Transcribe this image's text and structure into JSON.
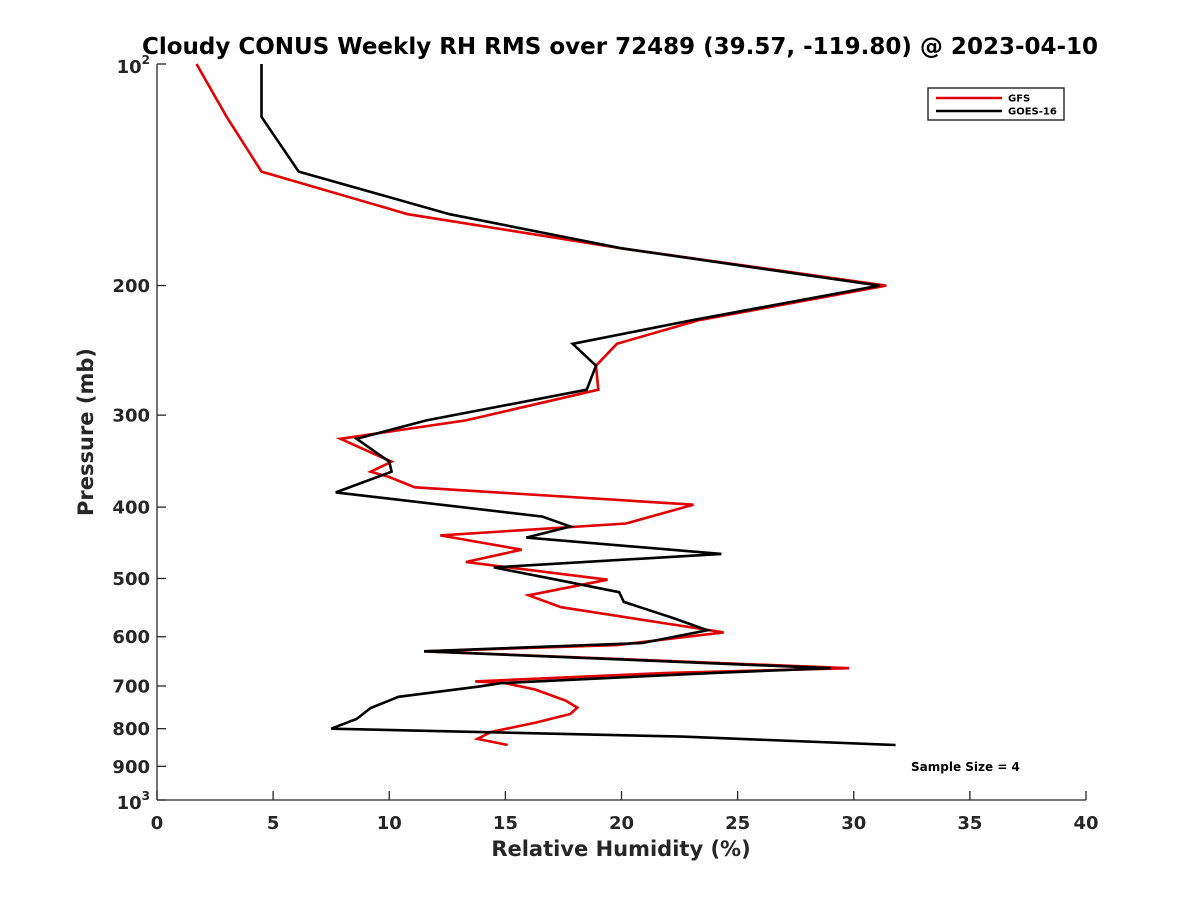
{
  "chart_data": {
    "type": "line",
    "title": "Cloudy CONUS Weekly RH RMS over 72489 (39.57, -119.80) @ 2023-04-10",
    "xlabel": "Relative Humidity (%)",
    "ylabel": "Pressure (mb)",
    "xlim": [
      0,
      40
    ],
    "ylim": [
      100,
      1000
    ],
    "y_scale": "log",
    "y_reversed": true,
    "x_ticks": [
      "0",
      "5",
      "10",
      "15",
      "20",
      "25",
      "30",
      "35",
      "40"
    ],
    "y_ticks": [
      {
        "value": 100,
        "base": "10",
        "exp": "2"
      },
      {
        "value": 200,
        "label": "200"
      },
      {
        "value": 300,
        "label": "300"
      },
      {
        "value": 400,
        "label": "400"
      },
      {
        "value": 500,
        "label": "500"
      },
      {
        "value": 600,
        "label": "600"
      },
      {
        "value": 700,
        "label": "700"
      },
      {
        "value": 800,
        "label": "800"
      },
      {
        "value": 900,
        "label": "900"
      },
      {
        "value": 1000,
        "base": "10",
        "exp": "3"
      }
    ],
    "legend_position": "top-right",
    "annotation": "Sample Size = 4",
    "series": [
      {
        "name": "GFS",
        "color": "#e00000",
        "points": [
          [
            1.7,
            100
          ],
          [
            3.0,
            118
          ],
          [
            4.5,
            140
          ],
          [
            10.8,
            160
          ],
          [
            20.0,
            178
          ],
          [
            31.4,
            200
          ],
          [
            23.3,
            223
          ],
          [
            19.8,
            240
          ],
          [
            18.9,
            257
          ],
          [
            19.0,
            277
          ],
          [
            13.3,
            305
          ],
          [
            7.9,
            323
          ],
          [
            10.1,
            347
          ],
          [
            9.2,
            358
          ],
          [
            10.0,
            364
          ],
          [
            11.1,
            376
          ],
          [
            23.1,
            397
          ],
          [
            20.2,
            421
          ],
          [
            12.2,
            437
          ],
          [
            15.7,
            457
          ],
          [
            13.3,
            475
          ],
          [
            19.4,
            502
          ],
          [
            16.0,
            527
          ],
          [
            17.4,
            547
          ],
          [
            24.4,
            592
          ],
          [
            19.8,
            616
          ],
          [
            11.5,
            628
          ],
          [
            29.8,
            662
          ],
          [
            22.0,
            672
          ],
          [
            13.7,
            690
          ],
          [
            15.0,
            694
          ],
          [
            16.3,
            708
          ],
          [
            17.6,
            733
          ],
          [
            18.1,
            749
          ],
          [
            17.8,
            764
          ],
          [
            16.3,
            785
          ],
          [
            14.4,
            808
          ],
          [
            13.8,
            826
          ],
          [
            15.1,
            842
          ]
        ]
      },
      {
        "name": "GOES-16",
        "color": "#000000",
        "points": [
          [
            4.5,
            100
          ],
          [
            4.5,
            118
          ],
          [
            6.1,
            140
          ],
          [
            12.6,
            160
          ],
          [
            20.0,
            178
          ],
          [
            31.1,
            200
          ],
          [
            23.0,
            223
          ],
          [
            17.9,
            240
          ],
          [
            18.9,
            257
          ],
          [
            18.5,
            277
          ],
          [
            11.6,
            305
          ],
          [
            8.6,
            323
          ],
          [
            10.0,
            347
          ],
          [
            10.1,
            358
          ],
          [
            7.7,
            382
          ],
          [
            16.6,
            412
          ],
          [
            17.8,
            425
          ],
          [
            15.9,
            440
          ],
          [
            24.3,
            463
          ],
          [
            14.5,
            483
          ],
          [
            17.2,
            502
          ],
          [
            19.9,
            522
          ],
          [
            20.1,
            538
          ],
          [
            22.3,
            567
          ],
          [
            23.7,
            588
          ],
          [
            20.9,
            612
          ],
          [
            11.5,
            628
          ],
          [
            29.0,
            662
          ],
          [
            24.0,
            672
          ],
          [
            14.8,
            694
          ],
          [
            13.9,
            701
          ],
          [
            10.4,
            724
          ],
          [
            9.2,
            750
          ],
          [
            8.6,
            776
          ],
          [
            7.5,
            800
          ],
          [
            22.6,
            820
          ],
          [
            31.8,
            842
          ]
        ]
      }
    ]
  }
}
